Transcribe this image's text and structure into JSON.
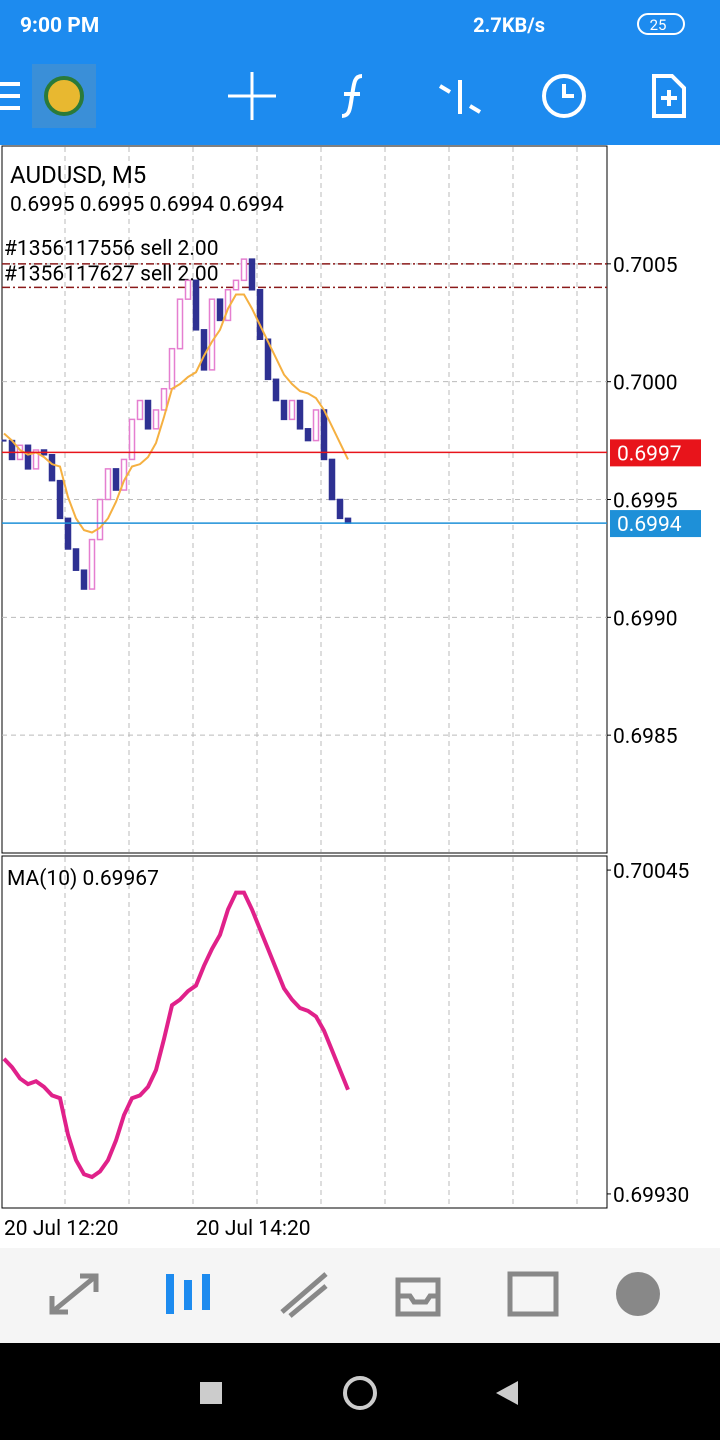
{
  "status_bar": {
    "time": "9:00 PM",
    "speed": "2.7KB/s",
    "battery": "25"
  },
  "chart_data": [
    {
      "type": "candlestick",
      "title": "AUDUSD, M5",
      "subtitle": "0.6995 0.6995 0.6994 0.6994",
      "close": [
        0.69975,
        0.69967,
        0.69973,
        0.69963,
        0.69971,
        0.69969,
        0.69958,
        0.69942,
        0.69929,
        0.6992,
        0.69912,
        0.69933,
        0.6995,
        0.69963,
        0.69954,
        0.69967,
        0.69984,
        0.69992,
        0.6998,
        0.69988,
        0.69997,
        0.70014,
        0.70035,
        0.70043,
        0.70022,
        0.70005,
        0.70035,
        0.70026,
        0.70039,
        0.70043,
        0.70052,
        0.70039,
        0.70018,
        0.70001,
        0.69992,
        0.69984,
        0.69992,
        0.6998,
        0.69975,
        0.69988,
        0.69967,
        0.6995,
        0.69942,
        0.6994
      ],
      "up_color": "#e57fd0",
      "down_color": "#2e3192",
      "overlay_color": "#f5b041",
      "ylim": [
        0.698,
        0.701
      ],
      "yticks": [
        0.7005,
        {
          "value": 0.7,
          "label": "0.7000"
        },
        0.6995,
        {
          "value": 0.699,
          "label": "0.6990"
        },
        0.6985
      ],
      "grid": true,
      "xticks": [
        {
          "index": 0,
          "label": "20 Jul 12:20"
        },
        {
          "index": 24,
          "label": "20 Jul 14:20"
        }
      ],
      "levels": [
        {
          "value": 0.6997,
          "color": "#e8141b"
        },
        {
          "value": 0.6994,
          "color": "#1e90d8"
        }
      ],
      "orders": [
        {
          "label": "#1356117556 sell 2.00",
          "value": 0.7005
        },
        {
          "label": "#1356117627 sell 2.00",
          "value": 0.7004
        }
      ]
    },
    {
      "type": "line",
      "title": "MA(10) 0.69967",
      "series": [
        {
          "color": "#e0218a",
          "values": [
            0.69978,
            0.69975,
            0.69971,
            0.69969,
            0.6997,
            0.69968,
            0.69965,
            0.69964,
            0.69951,
            0.69942,
            0.69937,
            0.69936,
            0.69938,
            0.69942,
            0.69949,
            0.69958,
            0.69964,
            0.69965,
            0.69968,
            0.69974,
            0.69985,
            0.69997,
            0.69999,
            0.70002,
            0.70004,
            0.70011,
            0.70017,
            0.70022,
            0.70031,
            0.70037,
            0.70037,
            0.70031,
            0.70024,
            0.70017,
            0.7001,
            0.70003,
            0.69999,
            0.69996,
            0.69995,
            0.69993,
            0.69988,
            0.69981,
            0.69974,
            0.69967
          ]
        }
      ],
      "ylim": [
        0.69925,
        0.7005
      ],
      "yticks": [
        0.70045,
        {
          "value": 0.6993,
          "label": "0.69930"
        }
      ]
    }
  ]
}
